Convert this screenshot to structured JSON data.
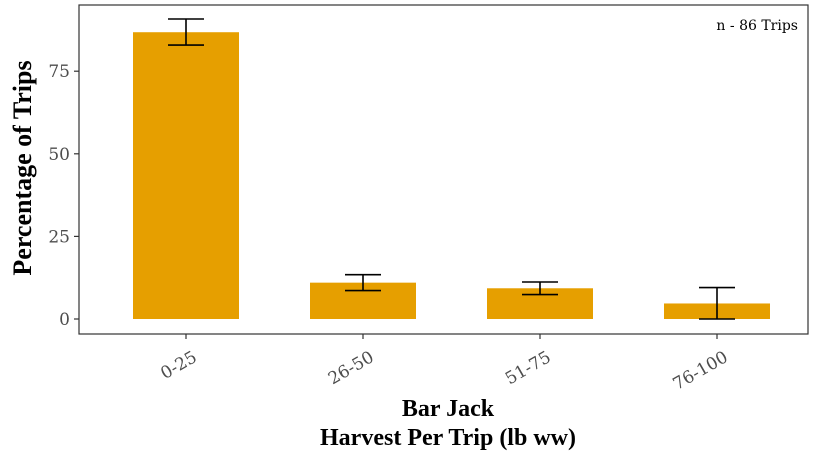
{
  "chart_data": {
    "type": "bar",
    "categories": [
      "0-25",
      "26-50",
      "51-75",
      "76-100"
    ],
    "values": [
      86.8,
      11.0,
      9.3,
      4.7
    ],
    "error_bars": [
      {
        "low": 82.9,
        "high": 90.8
      },
      {
        "low": 8.6,
        "high": 13.4
      },
      {
        "low": 7.4,
        "high": 11.2
      },
      {
        "low": 0.0,
        "high": 9.5
      }
    ],
    "title": "",
    "xlabel_line1": "Bar Jack",
    "xlabel_line2": "Harvest Per Trip (lb ww)",
    "ylabel": "Percentage of Trips",
    "ylim": [
      0,
      90.8
    ],
    "yticks": [
      0,
      25,
      50,
      75
    ],
    "annotation": "n - 86 Trips",
    "grid": false,
    "bar_color": "#e69f00",
    "error_bar_color": "#000000",
    "panel_border_color": "#333333"
  }
}
